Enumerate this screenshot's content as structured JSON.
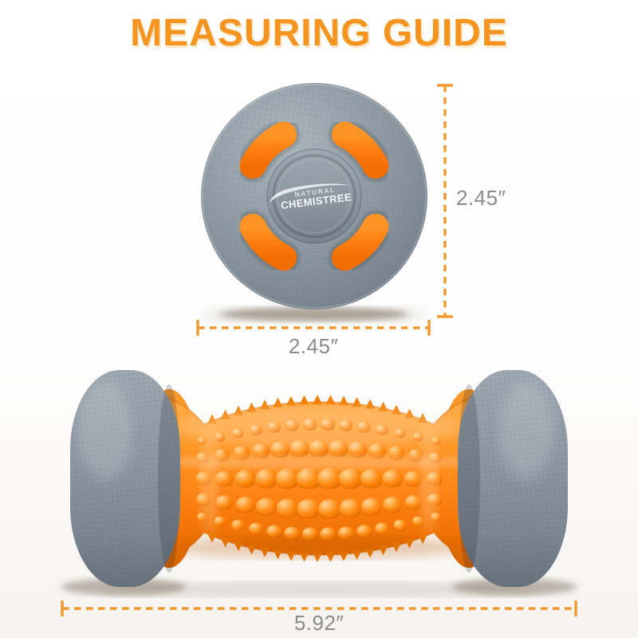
{
  "page": {
    "title": "MEASURING GUIDE"
  },
  "colors": {
    "accent": "#F5941F",
    "dimension_line": "#F0992E",
    "measurement_text": "#8B8B8B",
    "product_orange": "#FF7D10",
    "product_gray": "#8C97A0"
  },
  "product": {
    "brand_logo": {
      "line1": "NATURAL",
      "line2": "CHEMISTREE"
    }
  },
  "measurements": {
    "disc_height": "2.45″",
    "disc_width": "2.45″",
    "roller_length": "5.92″"
  }
}
